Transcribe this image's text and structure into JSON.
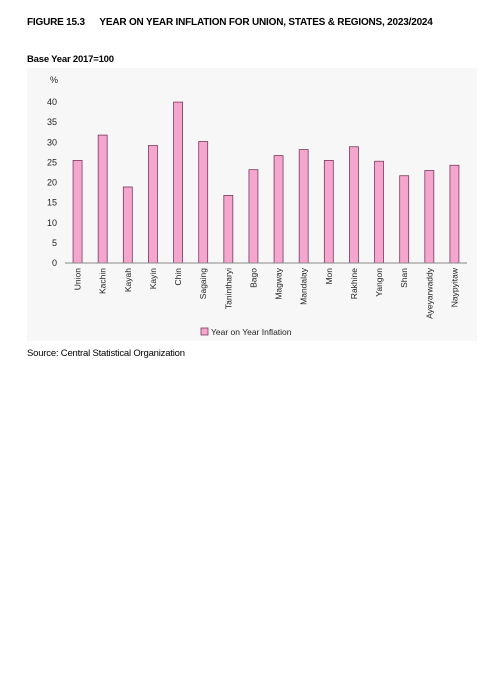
{
  "figure": {
    "number": "FIGURE 15.3",
    "title": "YEAR ON YEAR INFLATION FOR UNION, STATES & REGIONS, 2023/2024",
    "base_year": "Base Year 2017=100",
    "source": "Source: Central Statistical Organization"
  },
  "chart_data": {
    "type": "bar",
    "title": "",
    "xlabel": "",
    "ylabel": "%",
    "ylim": [
      0,
      45
    ],
    "yticks": [
      0,
      5,
      10,
      15,
      20,
      25,
      30,
      35,
      40
    ],
    "grid": false,
    "legend_position": "bottom",
    "categories": [
      "Union",
      "Kachin",
      "Kayah",
      "Kayin",
      "Chin",
      "Sagaing",
      "Tanintharyi",
      "Bago",
      "Magway",
      "Mandalay",
      "Mon",
      "Rakhine",
      "Yangon",
      "Shan",
      "Ayeyarwaddy",
      "Naypyitaw"
    ],
    "series": [
      {
        "name": "Year on Year Inflation",
        "color": "#f4a6cf",
        "stroke": "#7a3a5c",
        "values": [
          25.5,
          31.8,
          18.9,
          29.2,
          40.0,
          30.2,
          16.8,
          23.2,
          26.7,
          28.2,
          25.5,
          28.9,
          25.3,
          21.7,
          23.0,
          24.3
        ]
      }
    ]
  }
}
